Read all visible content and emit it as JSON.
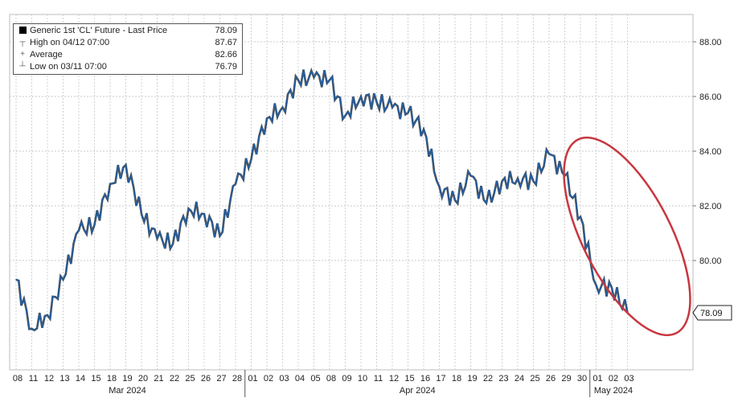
{
  "chart_data": {
    "type": "line",
    "title": "",
    "legend": [
      {
        "icon": "black-square-icon",
        "label": "Generic 1st 'CL' Future - Last Price",
        "value": "78.09"
      },
      {
        "icon": "high-marker-icon",
        "label": "High on 04/12 07:00",
        "value": "87.67"
      },
      {
        "icon": "average-marker-icon",
        "label": "Average",
        "value": "82.66"
      },
      {
        "icon": "low-marker-icon",
        "label": "Low on 03/11 07:00",
        "value": "76.79"
      }
    ],
    "last_price_tag": "78.09",
    "ylim": [
      76,
      89
    ],
    "y_ticks": [
      "80.00",
      "82.00",
      "84.00",
      "86.00",
      "88.00"
    ],
    "y_tick_values": [
      80,
      82,
      84,
      86,
      88
    ],
    "x_tick_labels": [
      "08",
      "11",
      "12",
      "13",
      "14",
      "15",
      "18",
      "19",
      "20",
      "21",
      "22",
      "25",
      "26",
      "27",
      "28",
      "01",
      "02",
      "03",
      "04",
      "05",
      "08",
      "09",
      "10",
      "11",
      "12",
      "15",
      "16",
      "17",
      "18",
      "19",
      "22",
      "23",
      "24",
      "25",
      "26",
      "29",
      "30",
      "01",
      "02",
      "03"
    ],
    "months": [
      {
        "label": "Mar 2024",
        "start_index": 0,
        "end_index": 14
      },
      {
        "label": "Apr 2024",
        "start_index": 15,
        "end_index": 36
      },
      {
        "label": "May 2024",
        "start_index": 37,
        "end_index": 39
      }
    ],
    "series": [
      {
        "x": [
          "03/08",
          "03/11",
          "03/12",
          "03/13",
          "03/14",
          "03/15",
          "03/18",
          "03/19",
          "03/20",
          "03/21",
          "03/22",
          "03/25",
          "03/26",
          "03/27",
          "03/28",
          "04/01",
          "04/02",
          "04/03",
          "04/04",
          "04/05",
          "04/08",
          "04/09",
          "04/10",
          "04/11",
          "04/12",
          "04/15",
          "04/16",
          "04/17",
          "04/18",
          "04/19",
          "04/22",
          "04/23",
          "04/24",
          "04/25",
          "04/26",
          "04/29",
          "04/30",
          "05/01",
          "05/02",
          "05/03"
        ],
        "values": [
          79.3,
          77.5,
          78.0,
          79.3,
          81.1,
          81.3,
          82.8,
          83.5,
          81.7,
          80.8,
          80.6,
          81.9,
          81.7,
          80.9,
          82.8,
          83.7,
          85.2,
          85.6,
          86.6,
          86.7,
          86.6,
          85.3,
          86.0,
          85.8,
          85.6,
          85.4,
          84.8,
          82.7,
          82.2,
          83.1,
          82.1,
          82.9,
          83.0,
          82.9,
          83.9,
          83.1,
          81.6,
          79.1,
          79.0,
          78.09
        ],
        "color": "#1f5fa8"
      }
    ],
    "annotation": {
      "type": "ellipse",
      "color": "#c8373f"
    }
  }
}
